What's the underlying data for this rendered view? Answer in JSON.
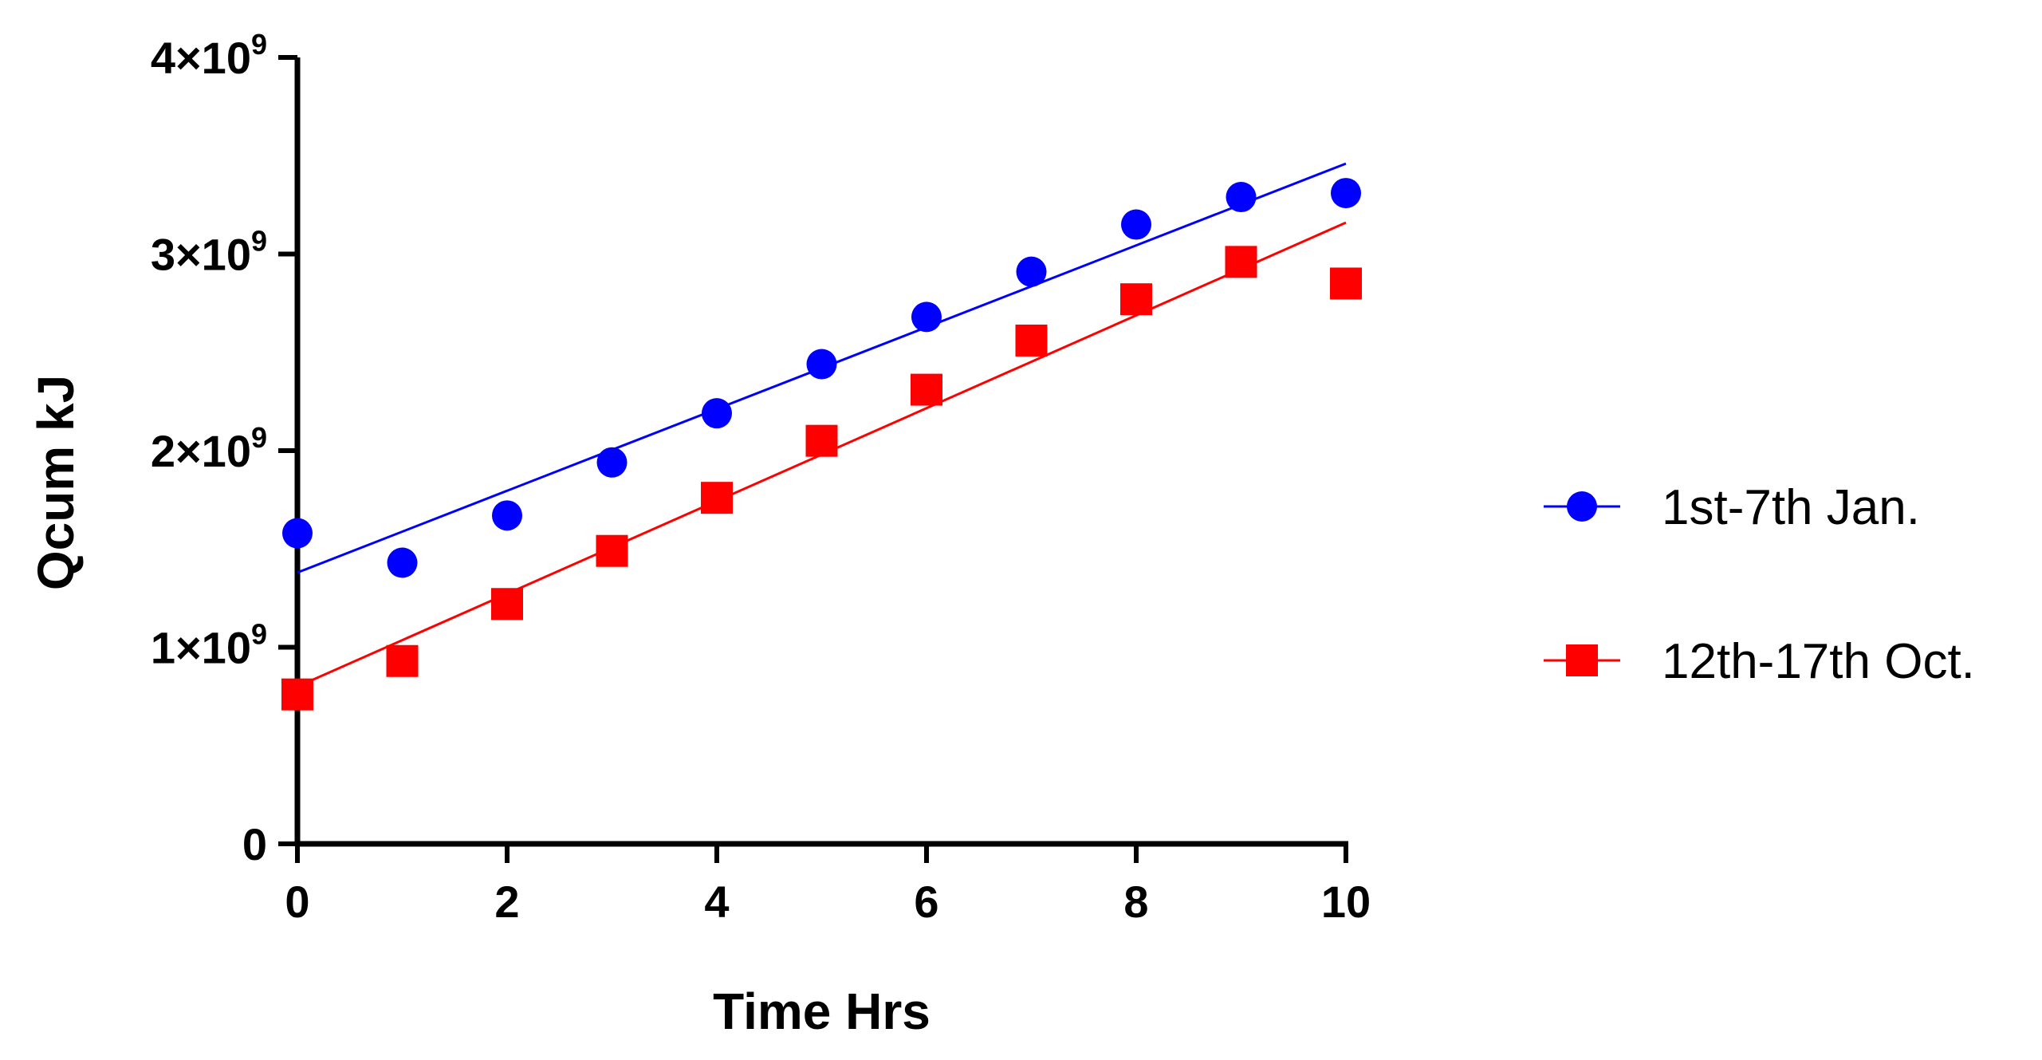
{
  "chart_data": {
    "type": "scatter",
    "title": "",
    "xlabel": "Time Hrs",
    "ylabel": "Qcum kJ",
    "xlim": [
      0,
      10
    ],
    "ylim": [
      0,
      4000000000
    ],
    "x_ticks": [
      0,
      2,
      4,
      6,
      8,
      10
    ],
    "x_tick_labels": [
      "0",
      "2",
      "4",
      "6",
      "8",
      "10"
    ],
    "y_ticks": [
      0,
      1000000000,
      2000000000,
      3000000000,
      4000000000
    ],
    "y_tick_labels": [
      {
        "base": "0",
        "exp": ""
      },
      {
        "base": "1×10",
        "exp": "9"
      },
      {
        "base": "2×10",
        "exp": "9"
      },
      {
        "base": "3×10",
        "exp": "9"
      },
      {
        "base": "4×10",
        "exp": "9"
      }
    ],
    "grid": false,
    "legend_position": "right",
    "series": [
      {
        "name": "1st-7th Jan.",
        "marker": "circle",
        "color": "#0000FF",
        "x": [
          0,
          1,
          2,
          3,
          4,
          5,
          6,
          7,
          8,
          9,
          10
        ],
        "values": [
          1580000000,
          1430000000,
          1670000000,
          1940000000,
          2190000000,
          2440000000,
          2680000000,
          2910000000,
          3150000000,
          3290000000,
          3310000000
        ],
        "fit": {
          "x": [
            0,
            10
          ],
          "y": [
            1380000000,
            3460000000
          ]
        }
      },
      {
        "name": "12th-17th Oct.",
        "marker": "square",
        "color": "#FF0000",
        "x": [
          0,
          1,
          2,
          3,
          4,
          5,
          6,
          7,
          8,
          9,
          10
        ],
        "values": [
          760000000,
          930000000,
          1220000000,
          1490000000,
          1760000000,
          2050000000,
          2310000000,
          2560000000,
          2770000000,
          2960000000,
          2850000000
        ],
        "fit": {
          "x": [
            0,
            10
          ],
          "y": [
            800000000,
            3160000000
          ]
        }
      }
    ]
  }
}
